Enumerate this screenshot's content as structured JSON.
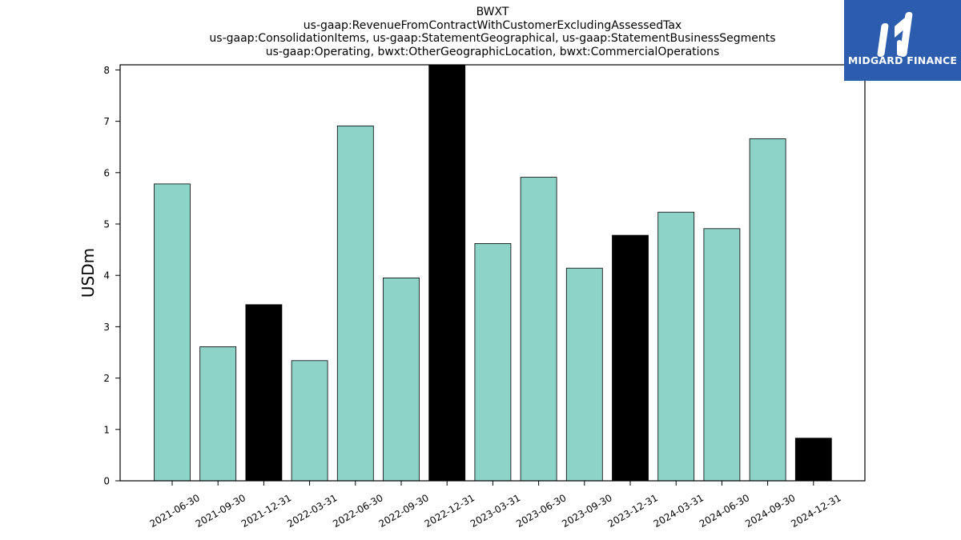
{
  "chart_data": {
    "type": "bar",
    "title_lines": [
      "BWXT",
      "us-gaap:RevenueFromContractWithCustomerExcludingAssessedTax",
      "us-gaap:ConsolidationItems, us-gaap:StatementGeographical, us-gaap:StatementBusinessSegments",
      "us-gaap:Operating, bwxt:OtherGeographicLocation, bwxt:CommercialOperations"
    ],
    "xlabel": "",
    "ylabel": "USDm",
    "ylim": [
      0,
      8.1
    ],
    "yticks": [
      0,
      1,
      2,
      3,
      4,
      5,
      6,
      7,
      8
    ],
    "categories": [
      "2021-06-30",
      "2021-09-30",
      "2021-12-31",
      "2022-03-31",
      "2022-06-30",
      "2022-09-30",
      "2022-12-31",
      "2023-03-31",
      "2023-06-30",
      "2023-09-30",
      "2023-12-31",
      "2024-03-31",
      "2024-06-30",
      "2024-09-30",
      "2024-12-31"
    ],
    "values": [
      5.78,
      2.61,
      3.43,
      2.34,
      6.91,
      3.95,
      8.13,
      4.62,
      5.91,
      4.14,
      4.78,
      5.23,
      4.91,
      6.66,
      0.83
    ],
    "bar_colors": [
      "#8dd3c7",
      "#8dd3c7",
      "#000000",
      "#8dd3c7",
      "#8dd3c7",
      "#8dd3c7",
      "#000000",
      "#8dd3c7",
      "#8dd3c7",
      "#8dd3c7",
      "#000000",
      "#8dd3c7",
      "#8dd3c7",
      "#8dd3c7",
      "#000000"
    ],
    "grid": false,
    "legend": "none"
  },
  "logo": {
    "text": "MIDGARD FINANCE",
    "background": "#2b5cad"
  }
}
